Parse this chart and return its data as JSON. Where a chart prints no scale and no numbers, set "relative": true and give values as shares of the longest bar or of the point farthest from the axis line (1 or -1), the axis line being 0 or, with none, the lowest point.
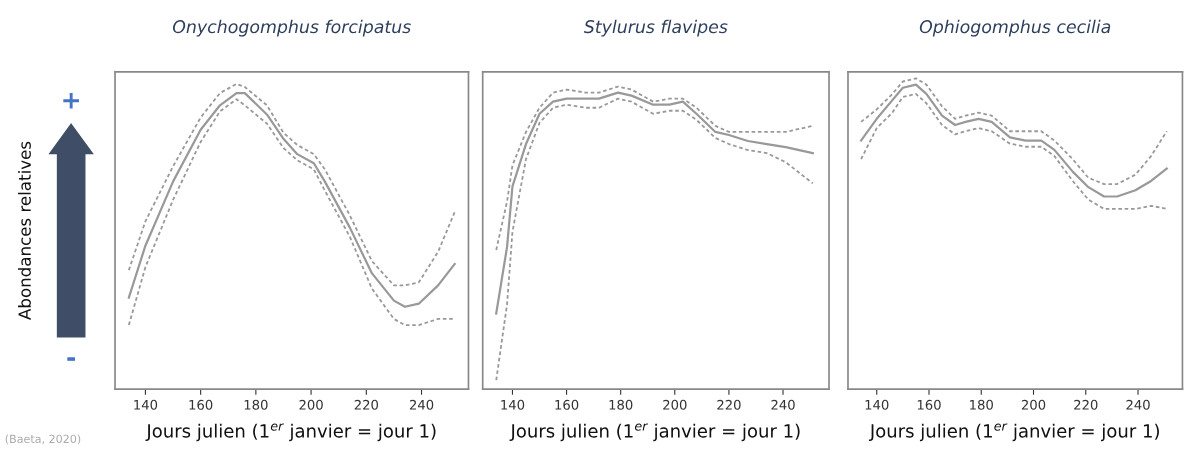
{
  "chart_data": [
    {
      "type": "line",
      "title": "Onychogomphus forcipatus",
      "xlabel": "Jours julien (1$^{er}$ janvier = jour 1)",
      "ylabel": "Abondances relatives",
      "relative": true,
      "xlim": [
        129,
        257
      ],
      "xticks": [
        140,
        160,
        180,
        200,
        220,
        240
      ],
      "grid": false,
      "marker": "none",
      "line_style": "solid",
      "annotations": [
        "+",
        "-",
        "(Baeta, 2020)"
      ],
      "series": [
        {
          "color": "#999999",
          "x": [
            134,
            140,
            150,
            160,
            167,
            173,
            176,
            184,
            190,
            195,
            201,
            205,
            214,
            222,
            230,
            234,
            239,
            246,
            252
          ],
          "values": [
            0.3,
            0.47,
            0.68,
            0.85,
            0.93,
            0.97,
            0.97,
            0.9,
            0.82,
            0.77,
            0.74,
            0.68,
            0.53,
            0.38,
            0.29,
            0.27,
            0.28,
            0.34,
            0.41
          ]
        },
        {
          "color": "#999999",
          "line_style": "dashed",
          "x": [
            134,
            140,
            150,
            160,
            167,
            173,
            176,
            184,
            190,
            195,
            201,
            205,
            214,
            222,
            230,
            234,
            239,
            246,
            252
          ],
          "values": [
            0.39,
            0.55,
            0.73,
            0.89,
            0.97,
            1.0,
            0.99,
            0.93,
            0.84,
            0.8,
            0.77,
            0.72,
            0.57,
            0.42,
            0.34,
            0.34,
            0.35,
            0.45,
            0.58
          ]
        },
        {
          "color": "#999999",
          "line_style": "dashed",
          "x": [
            134,
            140,
            150,
            160,
            167,
            173,
            176,
            184,
            190,
            195,
            201,
            205,
            214,
            222,
            230,
            234,
            239,
            246,
            252
          ],
          "values": [
            0.21,
            0.4,
            0.62,
            0.81,
            0.91,
            0.95,
            0.93,
            0.87,
            0.79,
            0.75,
            0.72,
            0.65,
            0.5,
            0.33,
            0.23,
            0.21,
            0.21,
            0.23,
            0.23
          ]
        }
      ]
    },
    {
      "type": "line",
      "title": "Stylurus flavipes",
      "xlabel": "Jours julien (1$^{er}$ janvier = jour 1)",
      "relative": true,
      "xlim": [
        129,
        257
      ],
      "xticks": [
        140,
        160,
        180,
        200,
        220,
        240
      ],
      "grid": false,
      "marker": "none",
      "line_style": "solid",
      "series": [
        {
          "color": "#999999",
          "x": [
            134,
            138,
            140,
            145,
            150,
            155,
            160,
            167,
            172,
            179,
            184,
            192,
            198,
            203,
            208,
            215,
            220,
            227,
            234,
            241,
            251
          ],
          "values": [
            0.25,
            0.47,
            0.67,
            0.81,
            0.91,
            0.95,
            0.96,
            0.96,
            0.96,
            0.98,
            0.97,
            0.94,
            0.94,
            0.95,
            0.91,
            0.85,
            0.84,
            0.82,
            0.81,
            0.8,
            0.78
          ]
        },
        {
          "color": "#999999",
          "line_style": "dashed",
          "x": [
            134,
            138,
            140,
            145,
            150,
            155,
            160,
            167,
            172,
            179,
            184,
            192,
            198,
            203,
            208,
            215,
            220,
            227,
            234,
            241,
            251
          ],
          "values": [
            0.46,
            0.62,
            0.74,
            0.85,
            0.93,
            0.98,
            0.99,
            0.98,
            0.98,
            1.0,
            0.99,
            0.95,
            0.96,
            0.96,
            0.93,
            0.87,
            0.85,
            0.85,
            0.85,
            0.85,
            0.87
          ]
        },
        {
          "color": "#999999",
          "line_style": "dashed",
          "x": [
            134,
            138,
            140,
            145,
            150,
            155,
            160,
            167,
            172,
            179,
            184,
            192,
            198,
            203,
            208,
            215,
            220,
            227,
            234,
            241,
            251
          ],
          "values": [
            0.03,
            0.28,
            0.52,
            0.76,
            0.88,
            0.93,
            0.94,
            0.93,
            0.93,
            0.96,
            0.95,
            0.91,
            0.92,
            0.92,
            0.89,
            0.83,
            0.81,
            0.79,
            0.78,
            0.75,
            0.68
          ]
        }
      ]
    },
    {
      "type": "line",
      "title": "Ophiogomphus cecilia",
      "xlabel": "Jours julien (1$^{er}$ janvier = jour 1)",
      "relative": true,
      "xlim": [
        129,
        257
      ],
      "xticks": [
        140,
        160,
        180,
        200,
        220,
        240
      ],
      "grid": false,
      "marker": "none",
      "line_style": "solid",
      "series": [
        {
          "color": "#999999",
          "x": [
            134,
            140,
            146,
            150,
            155,
            159,
            165,
            170,
            174,
            179,
            184,
            191,
            197,
            203,
            208,
            215,
            221,
            227,
            232,
            239,
            245,
            251
          ],
          "values": [
            0.8,
            0.87,
            0.93,
            0.97,
            0.98,
            0.95,
            0.88,
            0.85,
            0.86,
            0.87,
            0.86,
            0.81,
            0.8,
            0.8,
            0.77,
            0.7,
            0.65,
            0.62,
            0.62,
            0.64,
            0.67,
            0.71
          ]
        },
        {
          "color": "#999999",
          "line_style": "dashed",
          "x": [
            134,
            140,
            146,
            150,
            155,
            159,
            165,
            170,
            174,
            179,
            184,
            191,
            197,
            203,
            208,
            215,
            221,
            227,
            232,
            239,
            245,
            251
          ],
          "values": [
            0.86,
            0.9,
            0.95,
            0.99,
            1.0,
            0.98,
            0.91,
            0.87,
            0.88,
            0.89,
            0.88,
            0.83,
            0.83,
            0.83,
            0.8,
            0.74,
            0.68,
            0.66,
            0.66,
            0.69,
            0.75,
            0.83
          ]
        },
        {
          "color": "#999999",
          "line_style": "dashed",
          "x": [
            134,
            140,
            146,
            150,
            155,
            159,
            165,
            170,
            174,
            179,
            184,
            191,
            197,
            203,
            208,
            215,
            221,
            227,
            232,
            239,
            245,
            251
          ],
          "values": [
            0.74,
            0.84,
            0.89,
            0.94,
            0.95,
            0.92,
            0.85,
            0.82,
            0.83,
            0.84,
            0.83,
            0.79,
            0.78,
            0.78,
            0.75,
            0.67,
            0.61,
            0.58,
            0.58,
            0.58,
            0.59,
            0.58
          ]
        }
      ]
    }
  ]
}
